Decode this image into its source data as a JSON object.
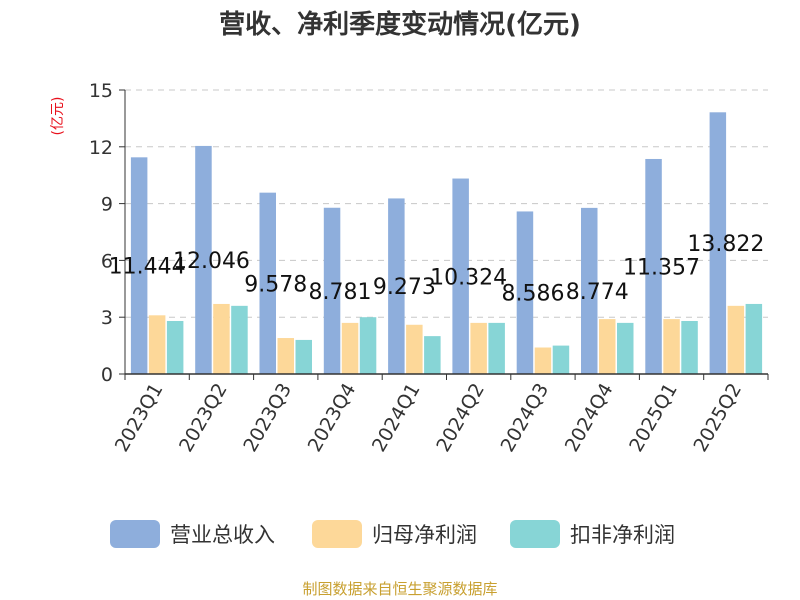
{
  "chart_data": {
    "type": "bar",
    "title": "营收、净利季度变动情况(亿元)",
    "unit_label": "(亿元)",
    "ylim": [
      0,
      15
    ],
    "yticks": [
      0,
      3,
      6,
      9,
      12,
      15
    ],
    "grid": true,
    "legend_position": "bottom",
    "categories": [
      "2023Q1",
      "2023Q2",
      "2023Q3",
      "2023Q4",
      "2024Q1",
      "2024Q2",
      "2024Q3",
      "2024Q4",
      "2025Q1",
      "2025Q2"
    ],
    "series": [
      {
        "name": "营业总收入",
        "color": "#8eaedc",
        "values": [
          11.444,
          12.046,
          9.578,
          8.781,
          9.273,
          10.324,
          8.586,
          8.774,
          11.357,
          13.822
        ],
        "labels": [
          "11.444",
          "12.046",
          "9.578",
          "8.781",
          "9.273",
          "10.324",
          "8.586",
          "8.774",
          "11.357",
          "13.822"
        ]
      },
      {
        "name": "归母净利润",
        "color": "#fdd899",
        "values": [
          3.1,
          3.7,
          1.9,
          2.7,
          2.6,
          2.7,
          1.4,
          2.9,
          2.9,
          3.6
        ]
      },
      {
        "name": "扣非净利润",
        "color": "#87d5d6",
        "values": [
          2.8,
          3.6,
          1.8,
          3.0,
          2.0,
          2.7,
          1.5,
          2.7,
          2.8,
          3.7
        ]
      }
    ]
  },
  "footer": {
    "source": "制图数据来自恒生聚源数据库"
  }
}
